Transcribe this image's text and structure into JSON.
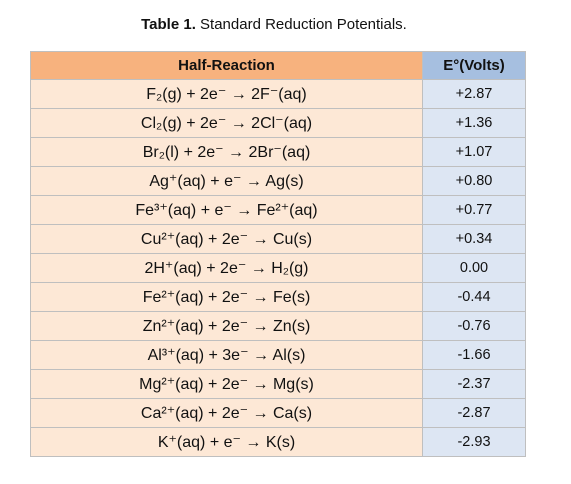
{
  "caption": {
    "label": "Table 1.",
    "text": "Standard Reduction Potentials."
  },
  "table": {
    "headers": {
      "reaction": "Half-Reaction",
      "potential": "E°(Volts)"
    },
    "rows": [
      {
        "reaction": "F₂(g) + 2e⁻ → 2F⁻(aq)",
        "potential": "+2.87"
      },
      {
        "reaction": "Cl₂(g) + 2e⁻ → 2Cl⁻(aq)",
        "potential": "+1.36"
      },
      {
        "reaction": "Br₂(l) + 2e⁻ → 2Br⁻(aq)",
        "potential": "+1.07"
      },
      {
        "reaction": "Ag⁺(aq) + e⁻ → Ag(s)",
        "potential": "+0.80"
      },
      {
        "reaction": "Fe³⁺(aq) + e⁻ → Fe²⁺(aq)",
        "potential": "+0.77"
      },
      {
        "reaction": "Cu²⁺(aq) + 2e⁻ → Cu(s)",
        "potential": "+0.34"
      },
      {
        "reaction": "2H⁺(aq) + 2e⁻ → H₂(g)",
        "potential": "0.00"
      },
      {
        "reaction": "Fe²⁺(aq) + 2e⁻ → Fe(s)",
        "potential": "-0.44"
      },
      {
        "reaction": "Zn²⁺(aq) + 2e⁻ → Zn(s)",
        "potential": "-0.76"
      },
      {
        "reaction": "Al³⁺(aq) + 3e⁻ → Al(s)",
        "potential": "-1.66"
      },
      {
        "reaction": "Mg²⁺(aq) + 2e⁻ → Mg(s)",
        "potential": "-2.37"
      },
      {
        "reaction": "Ca²⁺(aq) + 2e⁻ → Ca(s)",
        "potential": "-2.87"
      },
      {
        "reaction": "K⁺(aq) + e⁻ → K(s)",
        "potential": "-2.93"
      }
    ]
  },
  "colors": {
    "header_reaction_bg": "#f7b27e",
    "header_potential_bg": "#a6bfe0",
    "reaction_cell_bg": "#fde8d6",
    "potential_cell_bg": "#dde6f3",
    "border": "#bfbfbf"
  }
}
